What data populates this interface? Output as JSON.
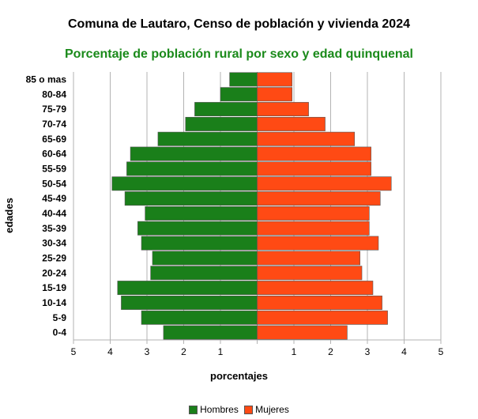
{
  "chart_data": {
    "type": "bar",
    "orientation": "horizontal-pyramid",
    "title": "Comuna de Lautaro, Censo de población y vivienda 2024",
    "subtitle": "Porcentaje de población rural por sexo y edad quinquenal",
    "xlabel": "porcentajes",
    "ylabel": "edades",
    "categories": [
      "0-4",
      "5-9",
      "10-14",
      "15-19",
      "20-24",
      "25-29",
      "30-34",
      "35-39",
      "40-44",
      "45-49",
      "50-54",
      "55-59",
      "60-64",
      "65-69",
      "70-74",
      "75-79",
      "80-84",
      "85 o mas"
    ],
    "series": [
      {
        "name": "Hombres",
        "color": "#1a7f1a",
        "values": [
          2.55,
          3.15,
          3.7,
          3.8,
          2.9,
          2.85,
          3.15,
          3.25,
          3.05,
          3.6,
          3.95,
          3.55,
          3.45,
          2.7,
          1.95,
          1.7,
          1.0,
          0.75
        ]
      },
      {
        "name": "Mujeres",
        "color": "#ff4a14",
        "values": [
          2.45,
          3.55,
          3.4,
          3.15,
          2.85,
          2.8,
          3.3,
          3.05,
          3.05,
          3.35,
          3.65,
          3.1,
          3.1,
          2.65,
          1.85,
          1.4,
          0.95,
          0.95
        ]
      }
    ],
    "xlim": [
      -5,
      5
    ],
    "xticks": [
      5,
      4,
      3,
      2,
      1,
      "",
      1,
      2,
      3,
      4,
      5
    ],
    "grid": true,
    "legend": "bottom"
  }
}
